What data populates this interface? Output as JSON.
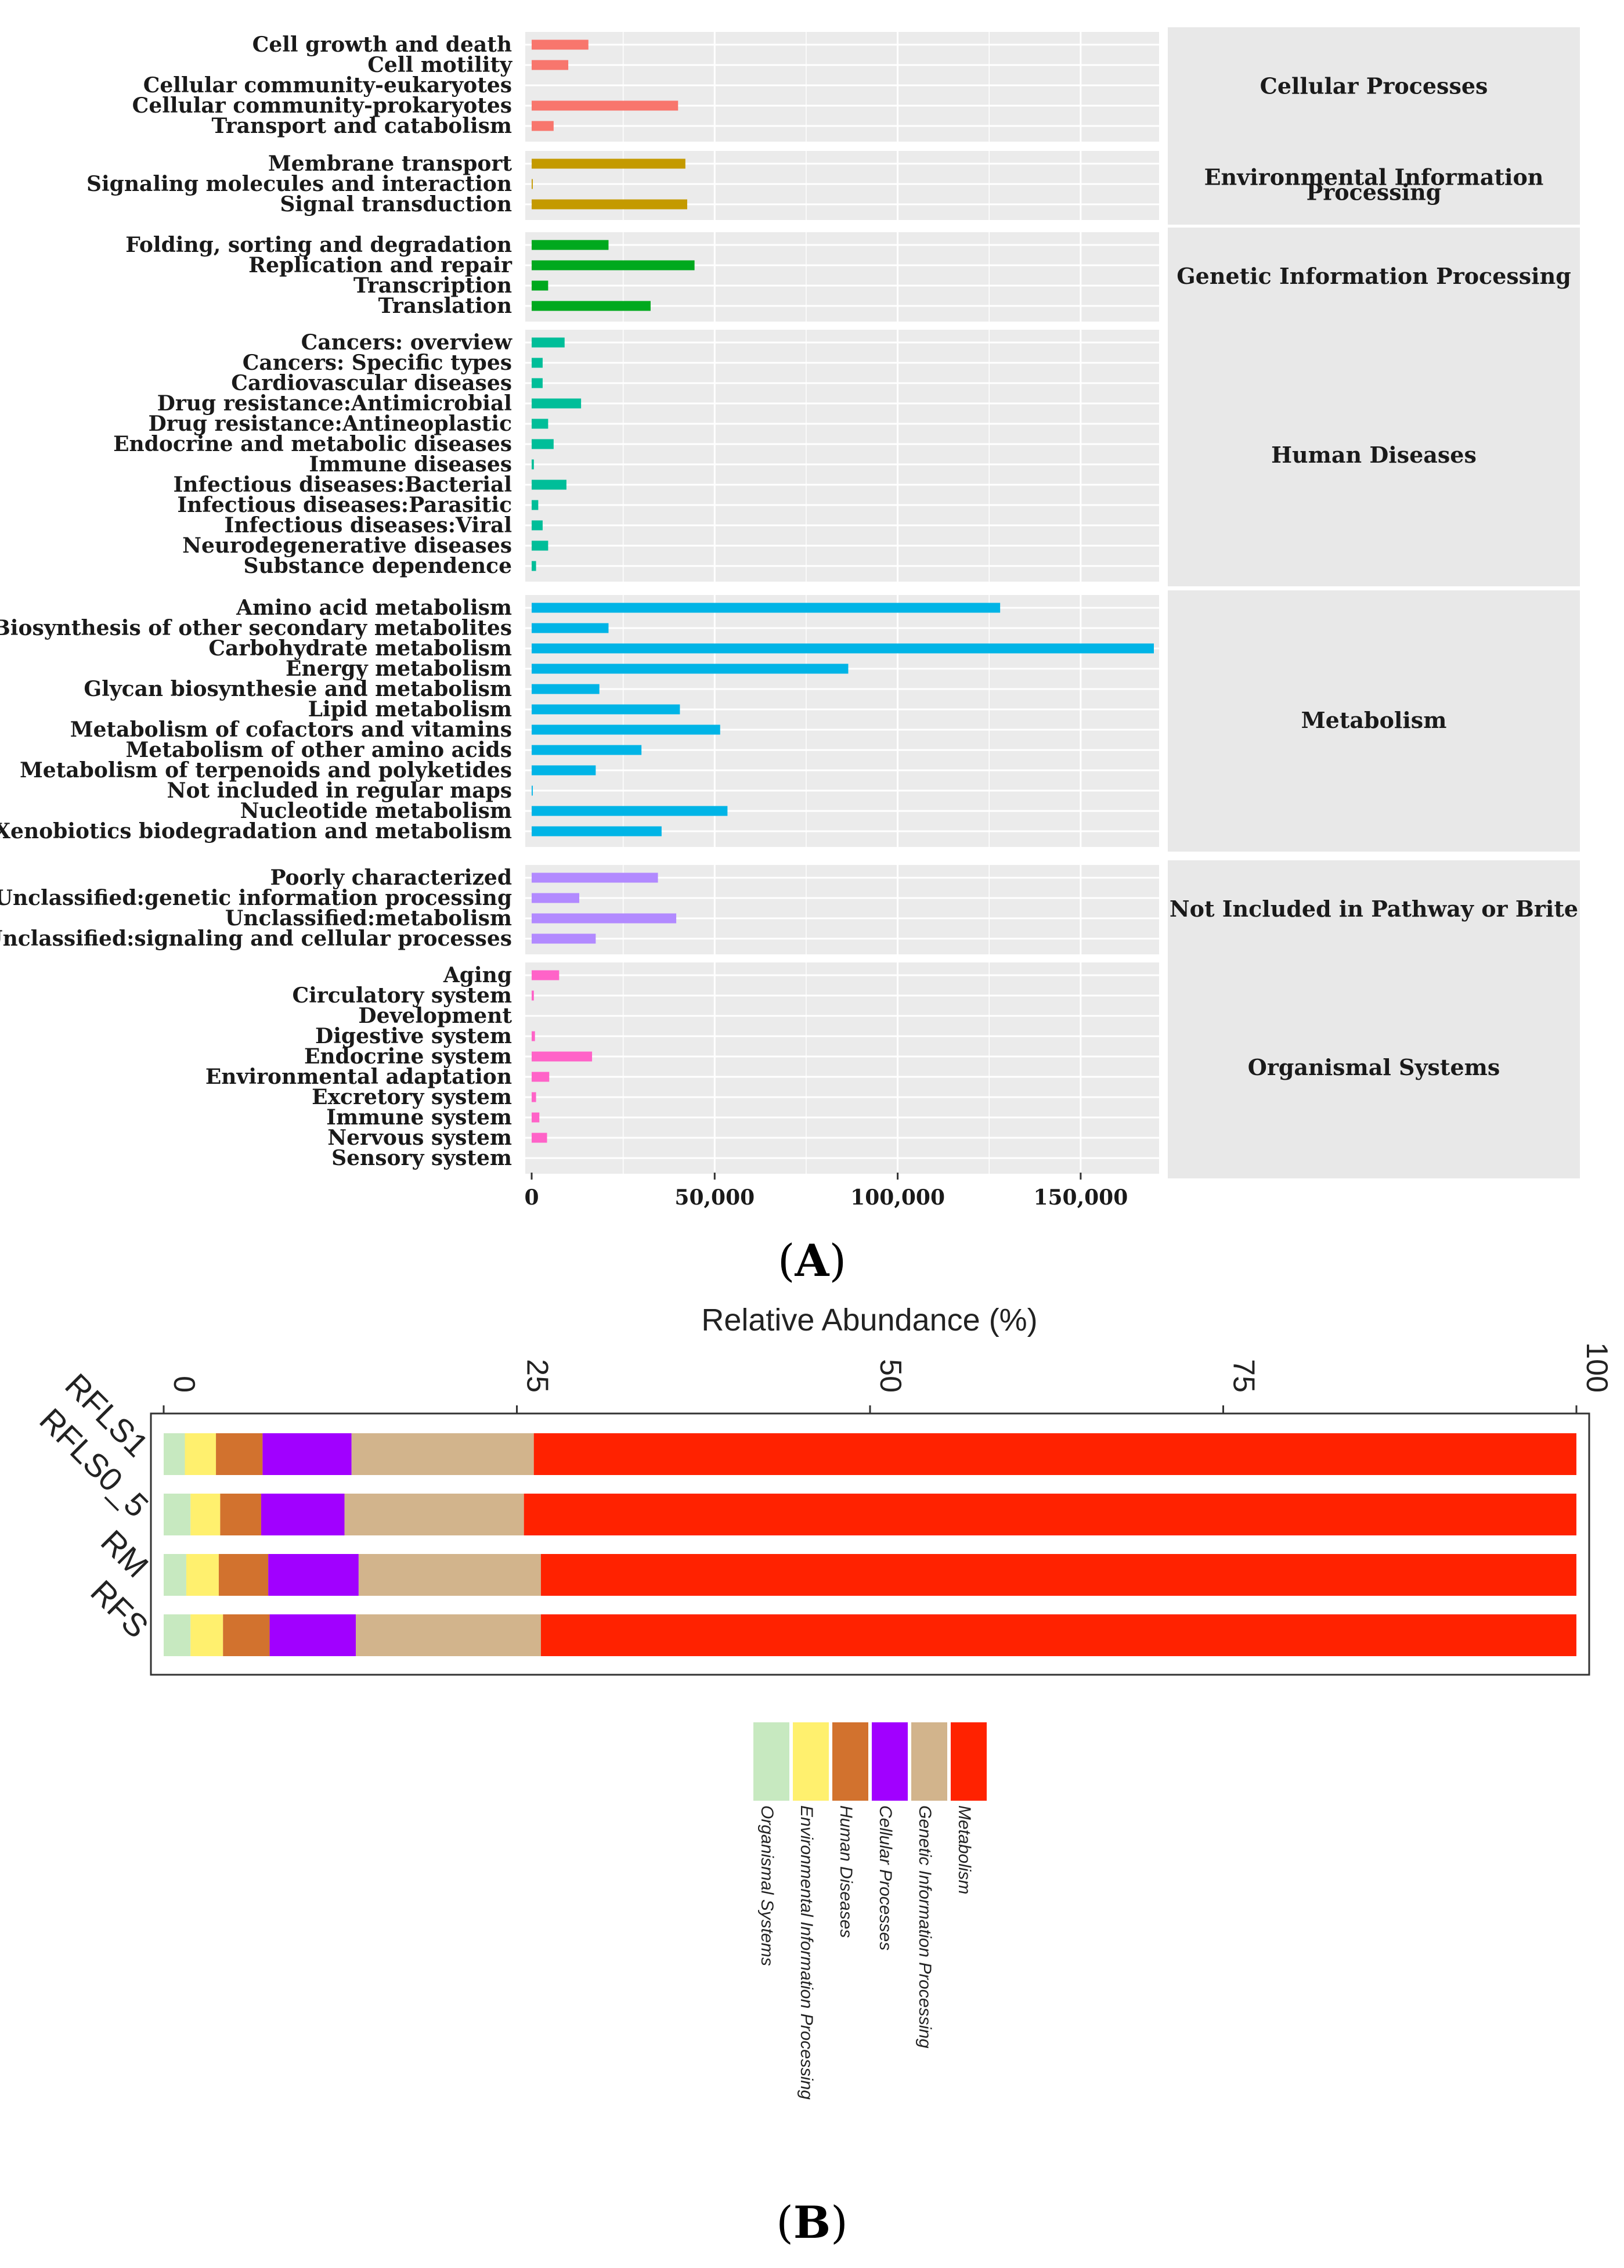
{
  "chart_data": [
    {
      "type": "bar",
      "orientation": "horizontal",
      "panel_label": "(A)",
      "panel_letter": "A",
      "title": "",
      "xlabel": "",
      "ylabel": "",
      "xlim": [
        0,
        170000
      ],
      "xticks": [
        0,
        50000,
        100000,
        150000
      ],
      "xtick_labels": [
        "0",
        "50,000",
        "100,000",
        "150,000"
      ],
      "groups": [
        {
          "name": "Cellular Processes",
          "color": "#F8766D",
          "categories": [
            "Cell growth and death",
            "Cell motility",
            "Cellular community-eukaryotes",
            "Cellular community-prokaryotes",
            "Transport and catabolism"
          ],
          "values": [
            15500,
            10000,
            0,
            40000,
            6000
          ]
        },
        {
          "name": "Environmental Information Processing",
          "color": "#C49A00",
          "categories": [
            "Membrane transport",
            "Signaling molecules and interaction",
            "Signal transduction"
          ],
          "values": [
            42000,
            300,
            42500
          ]
        },
        {
          "name": "Genetic Information Processing",
          "color": "#00A91E",
          "categories": [
            "Folding, sorting and degradation",
            "Replication and repair",
            "Transcription",
            "Translation"
          ],
          "values": [
            21000,
            44500,
            4500,
            32500
          ]
        },
        {
          "name": "Human Diseases",
          "color": "#00BE99",
          "categories": [
            "Cancers: overview",
            "Cancers: Specific types",
            "Cardiovascular diseases",
            "Drug resistance:Antimicrobial",
            "Drug resistance:Antineoplastic",
            "Endocrine and metabolic diseases",
            "Immune diseases",
            "Infectious diseases:Bacterial",
            "Infectious diseases:Parasitic",
            "Infectious diseases:Viral",
            "Neurodegenerative diseases",
            "Substance dependence"
          ],
          "values": [
            9000,
            3000,
            3000,
            13500,
            4500,
            6000,
            600,
            9500,
            1800,
            3000,
            4500,
            1200
          ]
        },
        {
          "name": "Metabolism",
          "color": "#00B4E6",
          "categories": [
            "Amino acid metabolism",
            "Biosynthesis of other secondary metabolites",
            "Carbohydrate metabolism",
            "Energy metabolism",
            "Glycan biosynthesie and metabolism",
            "Lipid metabolism",
            "Metabolism of cofactors and vitamins",
            "Metabolism of other amino acids",
            "Metabolism of terpenoids and polyketides",
            "Not included in regular maps",
            "Nucleotide metabolism",
            "Xenobiotics biodegradation and metabolism"
          ],
          "values": [
            128000,
            21000,
            170000,
            86500,
            18500,
            40500,
            51500,
            30000,
            17500,
            300,
            53500,
            35500
          ]
        },
        {
          "name": "Not Included in Pathway or Brite",
          "color": "#B28AFF",
          "categories": [
            "Poorly characterized",
            "Unclassified:genetic information processing",
            "Unclassified:metabolism",
            "Unclassified:signaling and cellular processes"
          ],
          "values": [
            34500,
            13000,
            39500,
            17500
          ]
        },
        {
          "name": "Organismal Systems",
          "color": "#FF63C8",
          "categories": [
            "Aging",
            "Circulatory system",
            "Development",
            "Digestive system",
            "Endocrine system",
            "Environmental adaptation",
            "Excretory system",
            "Immune system",
            "Nervous system",
            "Sensory system"
          ],
          "values": [
            7500,
            600,
            0,
            900,
            16500,
            4800,
            1200,
            2100,
            4200,
            0
          ]
        }
      ],
      "strip_labels": [
        [
          "Cellular Processes"
        ],
        [
          "Environmental Information",
          "Processing"
        ],
        [
          "Genetic Information Processing"
        ],
        [
          "Human Diseases"
        ],
        [
          "Metabolism"
        ],
        [
          "Not Included in Pathway or Brite"
        ],
        [
          "Organismal Systems"
        ]
      ],
      "legend": "none",
      "grid": true
    },
    {
      "type": "bar",
      "orientation": "horizontal",
      "stacked": true,
      "panel_label": "(B)",
      "panel_letter": "B",
      "title": "Relative Abundance (%)",
      "xlabel": "Relative Abundance (%)",
      "ylabel": "",
      "xlim": [
        0,
        100
      ],
      "xticks": [
        0,
        25,
        50,
        75,
        100
      ],
      "xtick_labels": [
        "0",
        "25",
        "50",
        "75",
        "100"
      ],
      "categories": [
        "RFLS1",
        "RFLS0_5",
        "RM",
        "RFS"
      ],
      "series": [
        {
          "name": "Organismal Systems",
          "color": "#C7E9C0",
          "values": [
            1.5,
            1.9,
            1.6,
            1.9
          ]
        },
        {
          "name": "Environmental Information Processing",
          "color": "#FFF06E",
          "values": [
            2.2,
            2.1,
            2.3,
            2.3
          ]
        },
        {
          "name": "Human Diseases",
          "color": "#D2722E",
          "values": [
            3.3,
            2.9,
            3.5,
            3.3
          ]
        },
        {
          "name": "Cellular Processes",
          "color": "#A100FF",
          "values": [
            6.3,
            5.9,
            6.4,
            6.1
          ]
        },
        {
          "name": "Genetic Information Processing",
          "color": "#D2B48C",
          "values": [
            12.9,
            12.7,
            12.9,
            13.1
          ]
        },
        {
          "name": "Metabolism",
          "color": "#FF2200",
          "values": [
            73.8,
            74.5,
            73.3,
            73.3
          ]
        }
      ],
      "legend_order": [
        "Organismal Systems",
        "Environmental Information Processing",
        "Human Diseases",
        "Cellular Processes",
        "Genetic Information Processing",
        "Metabolism"
      ],
      "legend": "bottom",
      "grid": false
    }
  ]
}
